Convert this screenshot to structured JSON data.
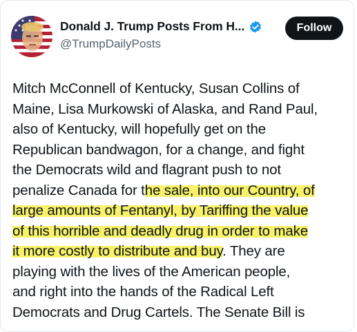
{
  "post": {
    "author": {
      "display_name": "Donald J. Trump Posts From H...",
      "handle": "@TrumpDailyPosts",
      "verified": true,
      "avatar_icon": "flag-portrait-avatar"
    },
    "follow_label": "Follow",
    "lines": [
      {
        "pre": "Mitch McConnell of Kentucky, Susan Collins of",
        "hl": "",
        "post": ""
      },
      {
        "pre": "Maine, Lisa Murkowski of Alaska, and Rand Paul,",
        "hl": "",
        "post": ""
      },
      {
        "pre": "also of Kentucky, will hopefully get on the",
        "hl": "",
        "post": ""
      },
      {
        "pre": "Republican bandwagon, for a change, and fight",
        "hl": "",
        "post": ""
      },
      {
        "pre": "the Democrats wild and flagrant push to not",
        "hl": "",
        "post": ""
      },
      {
        "pre": "penalize Canada for t",
        "hl": "he sale, into our Country, of",
        "post": ""
      },
      {
        "pre": "",
        "hl": "large amounts of Fentanyl, by Tariffing the value",
        "post": ""
      },
      {
        "pre": "",
        "hl": "of this horrible and deadly drug in order to make",
        "post": ""
      },
      {
        "pre": "",
        "hl": "it more costly to distribute and buy",
        "post": ". They are"
      },
      {
        "pre": "playing with the lives of the American people,",
        "hl": "",
        "post": ""
      },
      {
        "pre": "and right into the hands of the Radical Left",
        "hl": "",
        "post": ""
      },
      {
        "pre": "Democrats and Drug Cartels. The Senate Bill is",
        "hl": "",
        "post": ""
      }
    ]
  },
  "colors": {
    "text": "#0f1419",
    "secondary_text": "#536471",
    "verified_blue": "#1d9bf0",
    "highlight": "#f7f26a",
    "follow_button_bg": "#0f1419"
  }
}
